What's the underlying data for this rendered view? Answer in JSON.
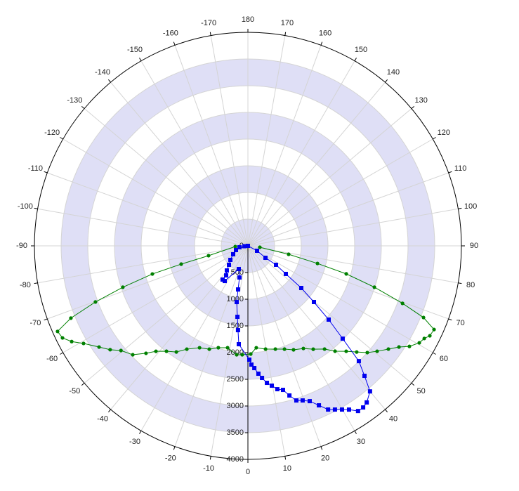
{
  "chart_data": {
    "type": "polar",
    "rlim": [
      0,
      4000
    ],
    "rticks": [
      0,
      500,
      1000,
      1500,
      2000,
      2500,
      3000,
      3500,
      4000
    ],
    "thetaticks": [
      0,
      10,
      20,
      30,
      40,
      50,
      60,
      70,
      80,
      90,
      100,
      110,
      120,
      130,
      140,
      150,
      160,
      170,
      180,
      -170,
      -160,
      -150,
      -140,
      -130,
      -120,
      -110,
      -100,
      -90,
      -80,
      -70,
      -60,
      -50,
      -40,
      -30,
      -20,
      -10
    ],
    "grid": true,
    "band_color": "#dfdff6",
    "series": [
      {
        "color": "#008000",
        "marker": "circle",
        "theta": [
          -86.8,
          -76,
          -74.7,
          -73.6,
          -71.7,
          -69.8,
          -67.8,
          -65.8,
          -63.6,
          -61.5,
          -59.3,
          -55.8,
          -53,
          -50.5,
          -46.6,
          -43.5,
          -41.1,
          -37.7,
          -34,
          -30.6,
          -25.4,
          -20.5,
          -16.2,
          -11.3,
          -5.9,
          -3,
          1.5,
          4.7,
          9.7,
          14.9,
          19.5,
          23.7,
          28.4,
          32.3,
          36.6,
          39.6,
          43,
          45.7,
          48.2,
          50.8,
          53.7,
          56.2,
          58.1,
          60.5,
          62.3,
          63.7,
          65.8,
          67.8,
          69.6,
          71.9,
          74.1,
          75.8,
          78.3,
          83.3
        ],
        "r": [
          237,
          760,
          1296,
          1866,
          2468,
          3044,
          3582,
          3910,
          3878,
          3757,
          3581,
          3372,
          3232,
          3082,
          2969,
          2774,
          2621,
          2495,
          2398,
          2248,
          2113,
          2066,
          1987,
          1946,
          2050,
          2042,
          2027,
          1915,
          1962,
          2001,
          2052,
          2127,
          2185,
          2290,
          2408,
          2561,
          2700,
          2848,
          3000,
          3124,
          3266,
          3406,
          3564,
          3689,
          3732,
          3802,
          3823,
          3553,
          3090,
          2493,
          1916,
          1344,
          779,
          225
        ]
      },
      {
        "color": "#0000ee",
        "marker": "square",
        "theta": [
          0,
          61.7,
          55.8,
          56,
          53.5,
          51.7,
          49.6,
          47.6,
          45.6,
          43.9,
          41.9,
          40,
          37.2,
          35.5,
          33.7,
          31.7,
          29.9,
          28,
          26.1,
          24,
          21.7,
          19.5,
          17.4,
          15.5,
          13.7,
          11.6,
          9.7,
          7.9,
          6.1,
          4.7,
          3,
          1.7,
          0.7,
          -5.3,
          -6.7,
          -8.4,
          -11.3,
          -12.7,
          -14.9,
          -21.5,
          -33.4,
          -36.9,
          -36.4,
          -40.6,
          -45,
          -51.3,
          -60.3,
          -70.6,
          -80.5,
          -84
        ],
        "r": [
          0,
          194,
          398,
          635,
          884,
          1274,
          1624,
          2049,
          2485,
          2997,
          3271,
          3559,
          3682,
          3718,
          3719,
          3605,
          3537,
          3473,
          3414,
          3270,
          3131,
          3072,
          3035,
          2909,
          2777,
          2741,
          2657,
          2591,
          2488,
          2403,
          2293,
          2225,
          2132,
          1850,
          1590,
          1344,
          1074,
          837,
          613,
          467,
          789,
          790,
          687,
          607,
          502,
          421,
          318,
          237,
          160,
          66
        ]
      }
    ]
  }
}
